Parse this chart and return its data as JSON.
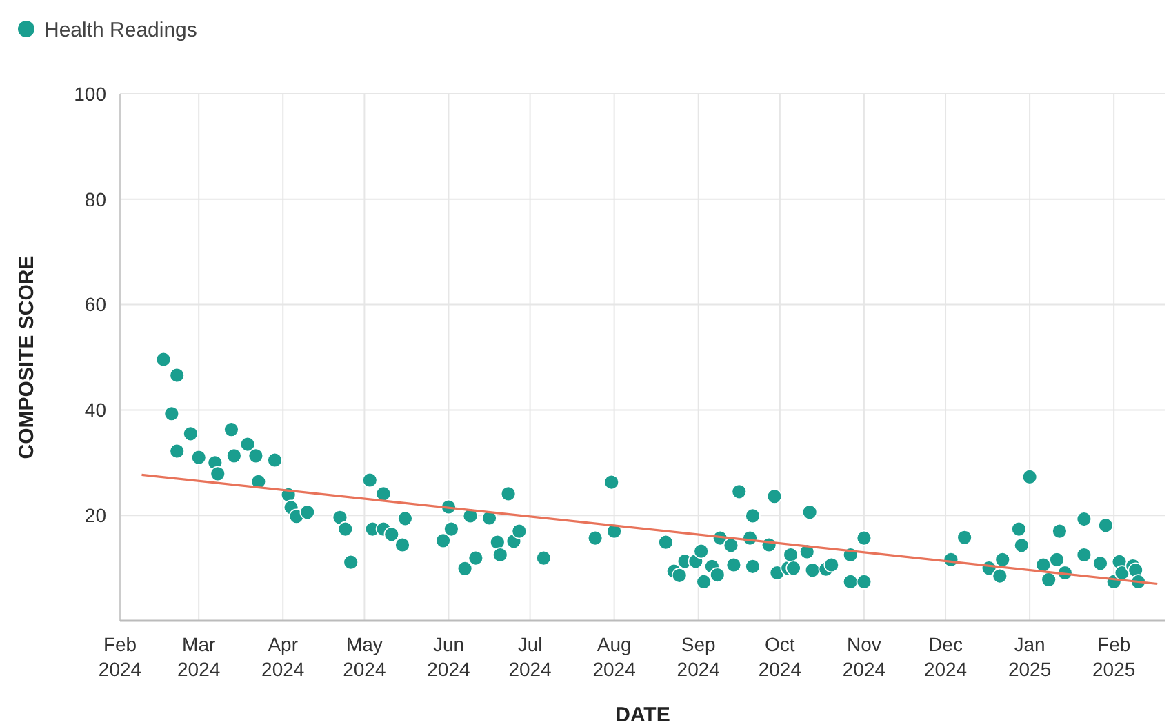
{
  "chart_data": {
    "type": "scatter",
    "xlabel": "DATE",
    "ylabel": "COMPOSITE SCORE",
    "xlim": [
      "2024-02-01",
      "2025-02-20"
    ],
    "ylim": [
      0,
      100
    ],
    "yticks": [
      20,
      40,
      60,
      80,
      100
    ],
    "xticks": [
      {
        "value": "2024-02",
        "label": "Feb 2024"
      },
      {
        "value": "2024-03",
        "label": "Mar 2024"
      },
      {
        "value": "2024-04",
        "label": "Apr 2024"
      },
      {
        "value": "2024-05",
        "label": "May 2024"
      },
      {
        "value": "2024-06",
        "label": "Jun 2024"
      },
      {
        "value": "2024-07",
        "label": "Jul 2024"
      },
      {
        "value": "2024-08",
        "label": "Aug 2024"
      },
      {
        "value": "2024-09",
        "label": "Sep 2024"
      },
      {
        "value": "2024-10",
        "label": "Oct 2024"
      },
      {
        "value": "2024-11",
        "label": "Nov 2024"
      },
      {
        "value": "2024-12",
        "label": "Dec 2024"
      },
      {
        "value": "2025-01",
        "label": "Jan 2025"
      },
      {
        "value": "2025-02",
        "label": "Feb 2025"
      }
    ],
    "grid": true,
    "legend": "top left",
    "series": [
      {
        "name": "Health Readings",
        "marker": "circle",
        "color": "#1a9e8f",
        "x": [
          "2024-02-17",
          "2024-02-22",
          "2024-02-20",
          "2024-02-22",
          "2024-02-27",
          "2024-03-01",
          "2024-03-07",
          "2024-03-08",
          "2024-03-13",
          "2024-03-14",
          "2024-03-19",
          "2024-03-22",
          "2024-03-23",
          "2024-03-29",
          "2024-04-03",
          "2024-04-04",
          "2024-04-06",
          "2024-04-10",
          "2024-04-22",
          "2024-04-24",
          "2024-04-26",
          "2024-05-03",
          "2024-05-08",
          "2024-05-04",
          "2024-05-08",
          "2024-05-11",
          "2024-05-16",
          "2024-05-15",
          "2024-05-30",
          "2024-06-01",
          "2024-06-02",
          "2024-06-07",
          "2024-06-09",
          "2024-06-11",
          "2024-06-16",
          "2024-06-19",
          "2024-06-20",
          "2024-06-23",
          "2024-06-25",
          "2024-06-27",
          "2024-07-06",
          "2024-07-25",
          "2024-07-31",
          "2024-08-01",
          "2024-08-20",
          "2024-08-23",
          "2024-08-25",
          "2024-08-27",
          "2024-08-31",
          "2024-09-02",
          "2024-09-03",
          "2024-09-06",
          "2024-09-08",
          "2024-09-09",
          "2024-09-13",
          "2024-09-14",
          "2024-09-16",
          "2024-09-20",
          "2024-09-21",
          "2024-09-21",
          "2024-09-27",
          "2024-09-29",
          "2024-09-30",
          "2024-10-04",
          "2024-10-05",
          "2024-10-06",
          "2024-10-11",
          "2024-10-12",
          "2024-10-13",
          "2024-10-18",
          "2024-10-20",
          "2024-10-27",
          "2024-10-27",
          "2024-11-01",
          "2024-11-01",
          "2024-12-03",
          "2024-12-08",
          "2024-12-17",
          "2024-12-21",
          "2024-12-22",
          "2024-12-28",
          "2024-12-29",
          "2025-01-01",
          "2025-01-06",
          "2025-01-08",
          "2025-01-11",
          "2025-01-12",
          "2025-01-14",
          "2025-01-21",
          "2025-01-21",
          "2025-01-27",
          "2025-01-29",
          "2025-02-01",
          "2025-02-03",
          "2025-02-04",
          "2025-02-08",
          "2025-02-09",
          "2025-02-10"
        ],
        "values": [
          49.6,
          46.6,
          39.3,
          32.2,
          35.5,
          31,
          30,
          27.9,
          36.3,
          31.3,
          33.5,
          31.3,
          26.4,
          30.5,
          23.9,
          21.5,
          19.8,
          20.6,
          19.6,
          17.4,
          11.1,
          26.7,
          24.1,
          17.4,
          17.4,
          16.4,
          19.4,
          14.4,
          15.2,
          21.6,
          17.4,
          9.9,
          19.9,
          11.9,
          19.5,
          14.9,
          12.5,
          24.1,
          15.1,
          17,
          11.9,
          15.7,
          26.3,
          17,
          14.9,
          9.4,
          8.6,
          11.3,
          11.3,
          13.2,
          7.4,
          10.3,
          8.7,
          15.7,
          14.3,
          10.6,
          24.5,
          15.7,
          19.9,
          10.3,
          14.4,
          23.6,
          9.1,
          10,
          12.5,
          10,
          13.1,
          20.6,
          9.6,
          9.8,
          10.6,
          12.5,
          7.4,
          15.7,
          7.4,
          11.6,
          15.8,
          10,
          8.5,
          11.6,
          17.4,
          14.3,
          27.3,
          10.6,
          7.8,
          11.6,
          17,
          9.1,
          19.3,
          12.5,
          10.9,
          18.1,
          7.4,
          11.2,
          9.1,
          10.4,
          9.6,
          7.4
        ]
      },
      {
        "type": "line",
        "color": "#e8735a",
        "x": [
          "2024-02-09",
          "2025-02-17"
        ],
        "values": [
          27.7,
          7.0
        ]
      }
    ]
  }
}
